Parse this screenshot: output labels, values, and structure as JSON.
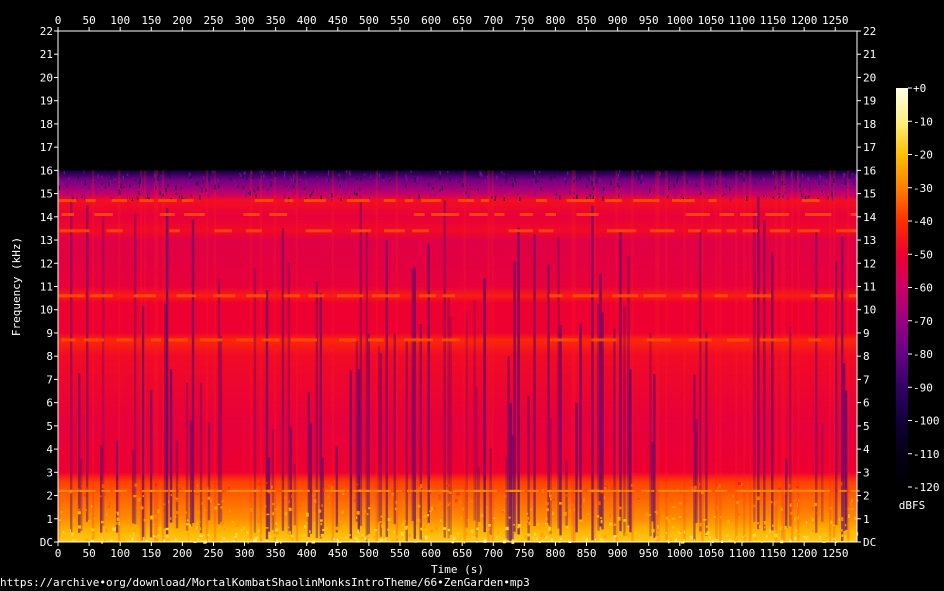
{
  "chart_data": {
    "type": "heatmap",
    "kind": "spectrogram",
    "xlabel": "Time (s)",
    "ylabel": "Frequency (kHz)",
    "xlim": [
      0,
      1285
    ],
    "ylim": [
      0,
      22
    ],
    "x_ticks": [
      0,
      50,
      100,
      150,
      200,
      250,
      300,
      350,
      400,
      450,
      500,
      550,
      600,
      650,
      700,
      750,
      800,
      850,
      900,
      950,
      1000,
      1050,
      1100,
      1150,
      1200,
      1250
    ],
    "y_ticks": [
      "DC",
      "1",
      "2",
      "3",
      "4",
      "5",
      "6",
      "7",
      "8",
      "9",
      "10",
      "11",
      "12",
      "13",
      "14",
      "15",
      "16",
      "17",
      "18",
      "19",
      "20",
      "21",
      "22"
    ],
    "colorbar": {
      "label": "dBFS",
      "range": [
        -120,
        0
      ],
      "ticks": [
        "+0",
        "-10",
        "-20",
        "-30",
        "-40",
        "-50",
        "-60",
        "-70",
        "-80",
        "-90",
        "-100",
        "-110",
        "-120"
      ],
      "colors": [
        "#ffffe6",
        "#fff080",
        "#ffc000",
        "#ff8000",
        "#ff3000",
        "#ee0030",
        "#cc0066",
        "#990080",
        "#660088",
        "#330066",
        "#10003a",
        "#050015",
        "#000000"
      ]
    },
    "content_cutoff_khz": 16,
    "bright_bands_khz": [
      8.7,
      10.6,
      13.4,
      14.1,
      14.7
    ],
    "bass_energy_khz": [
      0,
      2.5
    ]
  },
  "source_url": "https://archive•org/download/MortalKombatShaolinMonksIntroTheme/66•ZenGarden•mp3"
}
